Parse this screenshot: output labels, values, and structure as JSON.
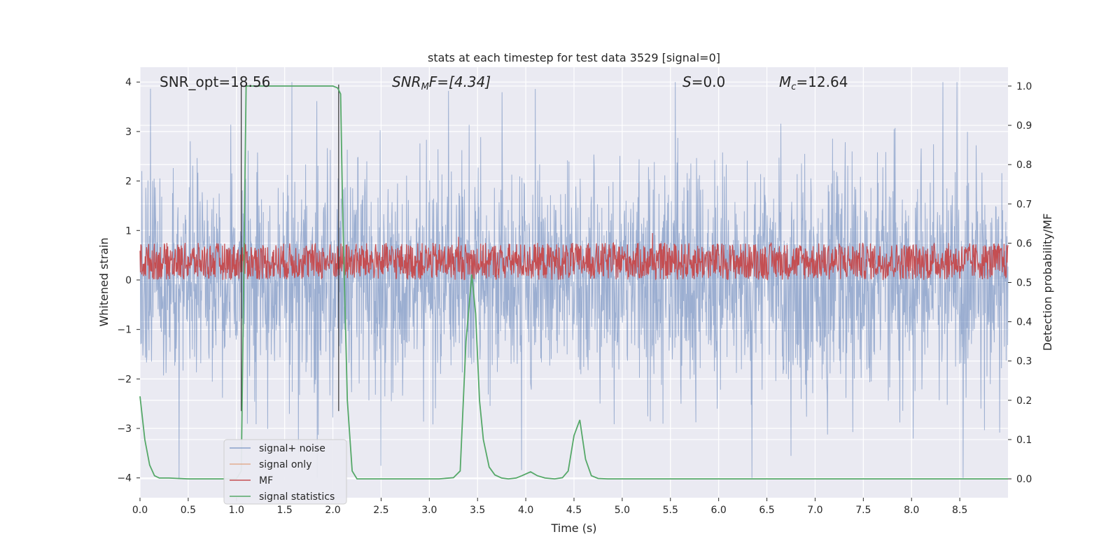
{
  "chart_data": {
    "type": "line",
    "title": "stats at each timestep for test data 3529 [signal=0]",
    "xlabel": "Time (s)",
    "ylabel": "Whitened strain",
    "ylabel_right": "Detection probability/MF",
    "xlim": [
      0.0,
      9.0
    ],
    "ylim": [
      -4.4,
      4.3
    ],
    "ylim_right": [
      -0.048,
      1.048
    ],
    "x_ticks": [
      "0.0",
      "0.5",
      "1.0",
      "1.5",
      "2.0",
      "2.5",
      "3.0",
      "3.5",
      "4.0",
      "4.5",
      "5.0",
      "5.5",
      "6.0",
      "6.5",
      "7.0",
      "7.5",
      "8.0",
      "8.5"
    ],
    "y_ticks": [
      "−4",
      "−3",
      "−2",
      "−1",
      "0",
      "1",
      "2",
      "3",
      "4"
    ],
    "y_ticks_right": [
      "0.0",
      "0.1",
      "0.2",
      "0.3",
      "0.4",
      "0.5",
      "0.6",
      "0.7",
      "0.8",
      "0.9",
      "1.0"
    ],
    "grid": true,
    "legend_position": "bottom-left",
    "annotations": {
      "snr_opt": "SNR_opt=18.56",
      "snr_mf_label": "SNR",
      "snr_mf_sub": "M",
      "snr_mf_value": "F=[4.34]",
      "s_label": "S",
      "s_value": "=0.0",
      "mc_label": "M",
      "mc_sub": "c",
      "mc_value": "=12.64"
    },
    "vertical_markers": [
      1.05,
      2.06
    ],
    "series": [
      {
        "name": "signal+ noise",
        "color": "#4c72b0",
        "axis": "left",
        "description_values": "noise band approx -2.5 to 2.5, spikes to ±4"
      },
      {
        "name": "signal only",
        "color": "#dd8452",
        "axis": "left",
        "values": []
      },
      {
        "name": "MF",
        "color": "#c44e52",
        "axis": "left",
        "band": [
          0.0,
          0.75
        ]
      },
      {
        "name": "signal statistics",
        "color": "#55a868",
        "axis": "right",
        "x": [
          0.0,
          0.05,
          0.1,
          0.15,
          0.2,
          0.3,
          0.5,
          0.7,
          0.9,
          1.0,
          1.05,
          1.08,
          1.1,
          1.15,
          1.3,
          1.5,
          1.7,
          1.9,
          2.0,
          2.05,
          2.08,
          2.1,
          2.15,
          2.2,
          2.25,
          2.35,
          2.5,
          2.8,
          3.1,
          3.25,
          3.32,
          3.38,
          3.44,
          3.48,
          3.52,
          3.56,
          3.62,
          3.68,
          3.75,
          3.82,
          3.9,
          3.96,
          4.05,
          4.12,
          4.2,
          4.3,
          4.38,
          4.44,
          4.5,
          4.56,
          4.62,
          4.68,
          4.75,
          4.85,
          5.0,
          6.0,
          7.0,
          8.0,
          9.0
        ],
        "y": [
          0.21,
          0.1,
          0.035,
          0.008,
          0.002,
          0.002,
          0.0,
          0.0,
          0.0,
          0.0,
          0.02,
          0.6,
          1.0,
          1.0,
          1.0,
          1.0,
          1.0,
          1.0,
          1.0,
          0.995,
          0.98,
          0.7,
          0.2,
          0.02,
          0.0,
          0.0,
          0.0,
          0.0,
          0.0,
          0.003,
          0.02,
          0.35,
          0.52,
          0.42,
          0.2,
          0.1,
          0.03,
          0.01,
          0.002,
          0.0,
          0.002,
          0.008,
          0.018,
          0.008,
          0.002,
          0.0,
          0.003,
          0.02,
          0.11,
          0.15,
          0.05,
          0.008,
          0.001,
          0.0,
          0.0,
          0.0,
          0.0,
          0.0,
          0.0
        ]
      }
    ]
  }
}
